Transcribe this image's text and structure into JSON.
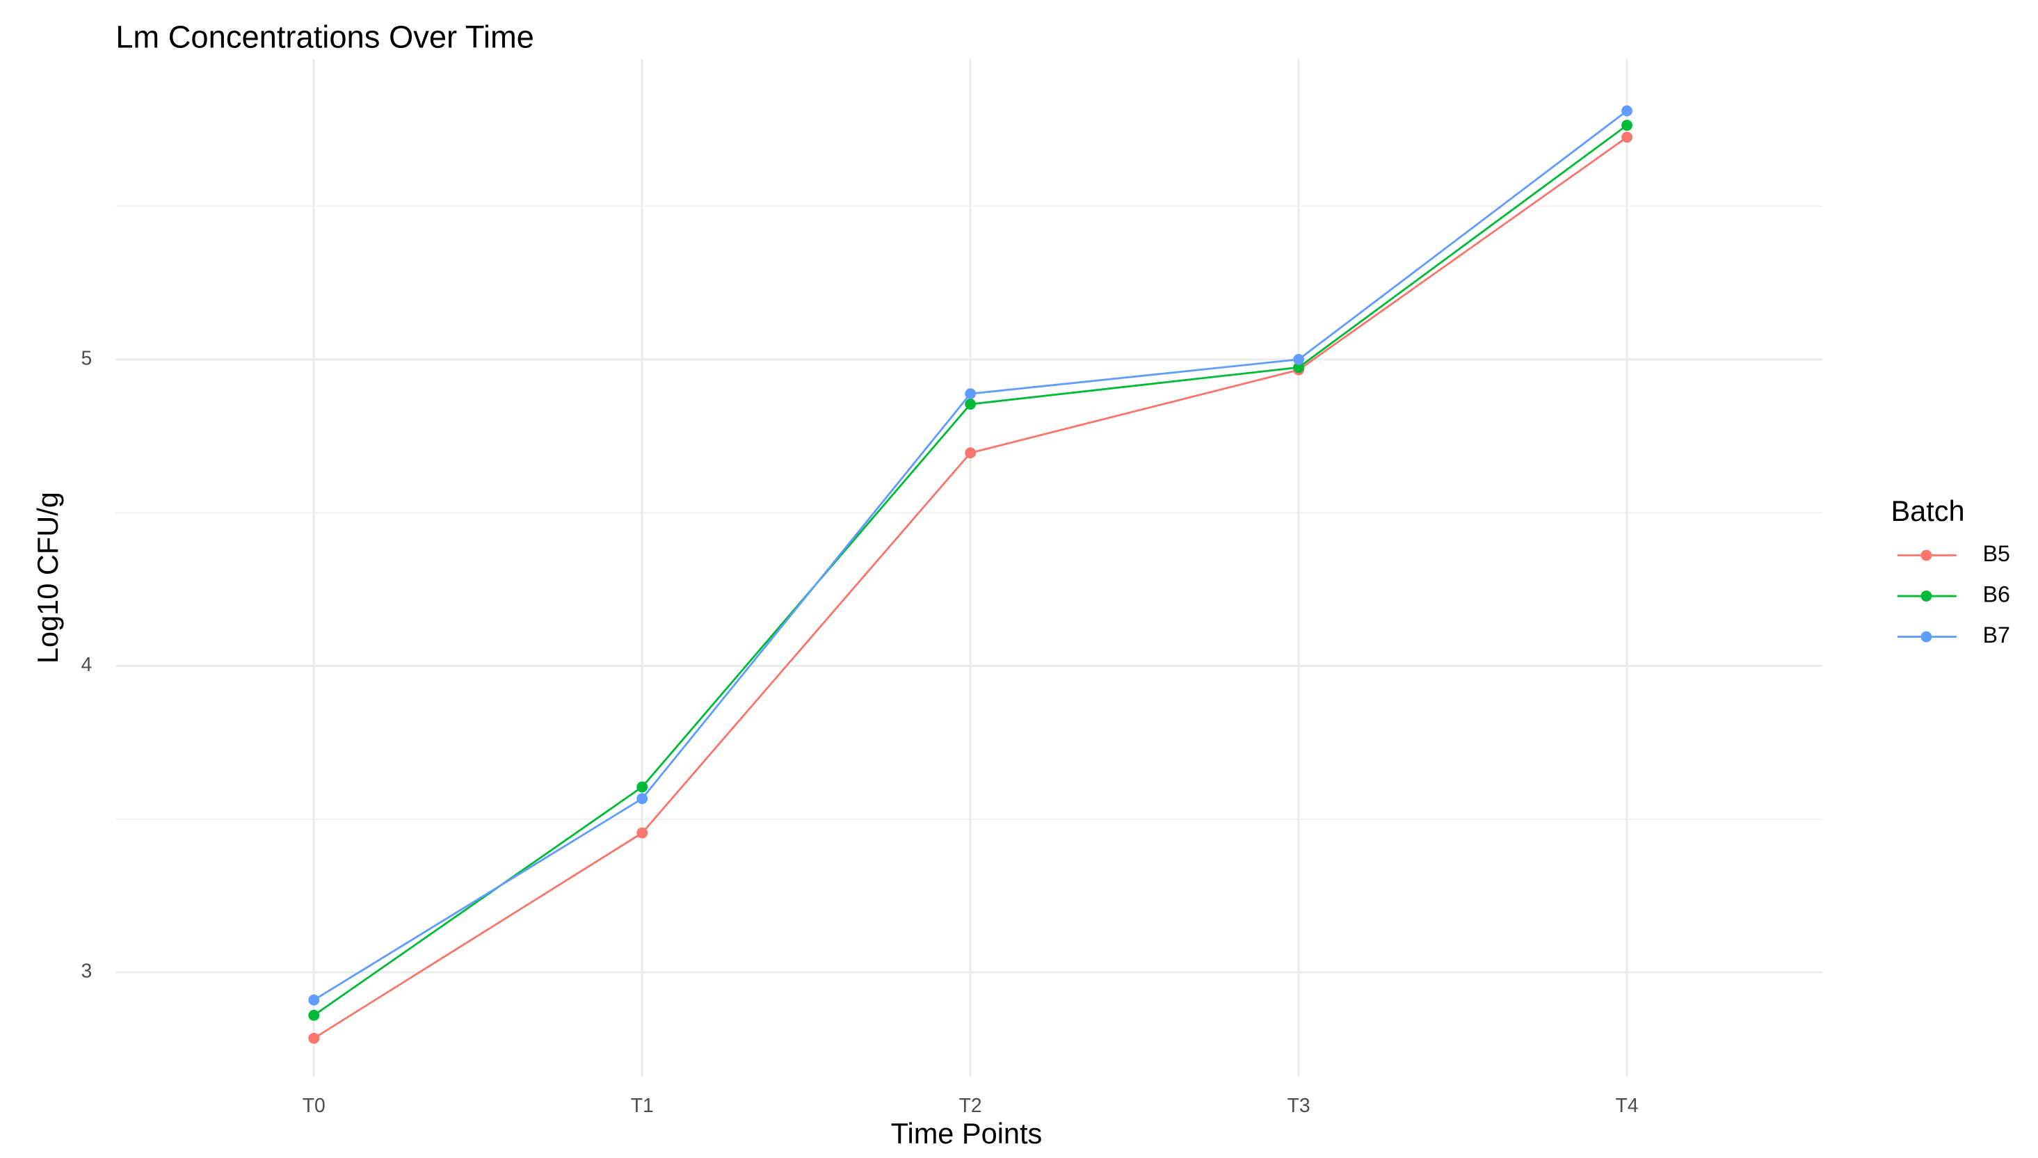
{
  "chart_data": {
    "type": "line",
    "title": "Lm Concentrations Over Time",
    "x_label": "Time Points",
    "y_label": "Log10 CFU/g",
    "categories": [
      "T0",
      "T1",
      "T2",
      "T3",
      "T4"
    ],
    "series": [
      {
        "name": "B5",
        "color": "#F8766D",
        "values": [
          2.785,
          3.455,
          4.695,
          4.966,
          5.725
        ]
      },
      {
        "name": "B6",
        "color": "#00BA38",
        "values": [
          2.86,
          3.605,
          4.854,
          4.974,
          5.764
        ]
      },
      {
        "name": "B7",
        "color": "#619CFF",
        "values": [
          2.91,
          3.567,
          4.888,
          5.0,
          5.811
        ]
      }
    ],
    "legend_title": "Batch",
    "ylim": [
      2.66,
      5.98
    ],
    "yticks": [
      3,
      4,
      5
    ],
    "minor_yticks": [
      3.5,
      4.5,
      5.5
    ],
    "grid": true,
    "legend": "right"
  }
}
